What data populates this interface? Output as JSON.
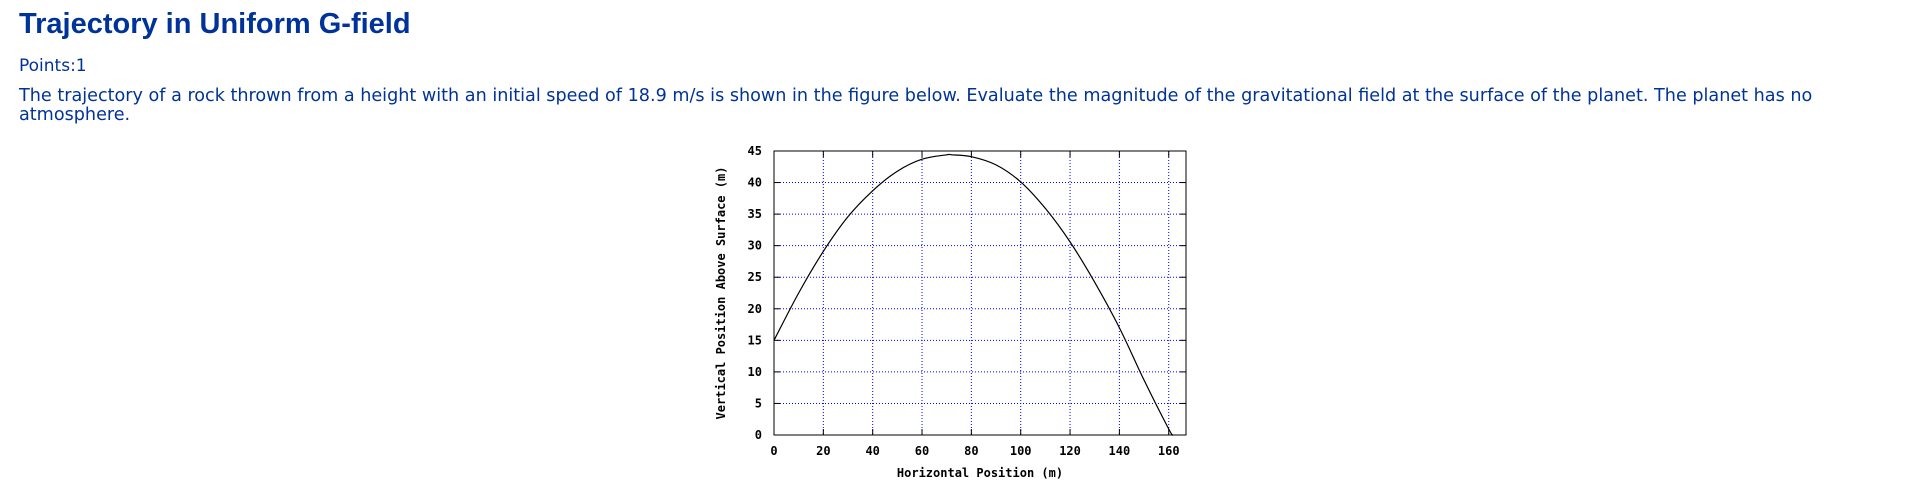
{
  "page": {
    "title": "Trajectory in Uniform G-field",
    "points": "Points:1",
    "question": "The trajectory of a rock thrown from a height with an initial speed of 18.9 m/s is shown in the figure below. Evaluate the magnitude of the gravitational field at the surface of the planet. The planet has no atmosphere."
  },
  "colors": {
    "text": "#003399",
    "grid": "#0000ff",
    "curve": "#000000"
  },
  "chart_data": {
    "type": "line",
    "title": "",
    "xlabel": "Horizontal Position (m)",
    "ylabel": "Vertical Position Above Surface (m)",
    "xlim": [
      0,
      167
    ],
    "ylim": [
      0,
      45
    ],
    "xticks": [
      0,
      20,
      40,
      60,
      80,
      100,
      120,
      140,
      160
    ],
    "yticks": [
      0,
      5,
      10,
      15,
      20,
      25,
      30,
      35,
      40,
      45
    ],
    "grid": true,
    "grid_style": "dotted",
    "series": [
      {
        "x": [
          0,
          10,
          20,
          30,
          40,
          50,
          60,
          70,
          72,
          80,
          90,
          100,
          110,
          120,
          130,
          140,
          150,
          160,
          161.7
        ],
        "y": [
          15.0,
          22.5,
          29.1,
          34.6,
          38.7,
          41.8,
          43.7,
          44.4,
          44.4,
          44.1,
          42.8,
          40.1,
          35.9,
          30.6,
          24.2,
          17.0,
          8.7,
          0.95,
          0
        ]
      }
    ]
  }
}
